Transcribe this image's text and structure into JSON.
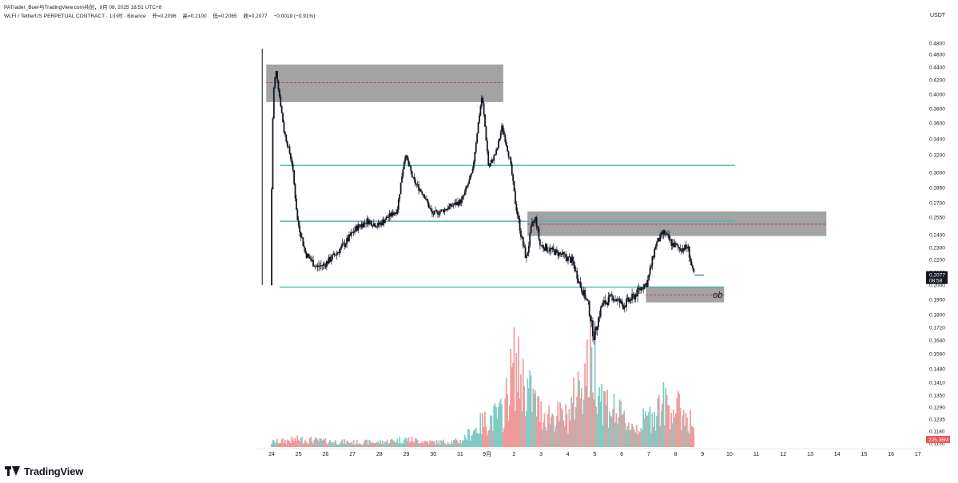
{
  "topbar": {
    "text": "PATrader_Buer与TradingView.com共创，9月 08, 2025 18:51 UTC+8"
  },
  "header": {
    "symbol": "WLFI / TetherUS PERPETUAL CONTRACT · 1小时 · Binance",
    "open": "开=0.2096",
    "high": "高=0.2100",
    "low": "低=0.2065",
    "close": "收=0.2077",
    "change": "−0.0019 (−0.91%)"
  },
  "currency": "USDT",
  "footer": {
    "brand": "TradingView"
  },
  "colors": {
    "candle": "#131722",
    "zone_fill": "#9e9e9e",
    "zone_mid_line": "#c2185b",
    "level_line": "#4db6ac",
    "price_label_bg": "#131722",
    "volume_up": "#80cbc4",
    "volume_down": "#ef9a9a",
    "volume_label_bg": "#ef5350"
  },
  "chart_data": {
    "type": "candlestick",
    "y_ticks": [
      "0.4800",
      "0.4600",
      "0.4400",
      "0.4200",
      "0.4000",
      "0.3800",
      "0.3600",
      "0.3400",
      "0.3200",
      "0.3000",
      "0.2850",
      "0.2700",
      "0.2550",
      "0.2400",
      "0.2300",
      "0.2200",
      "0.2100",
      "0.2000",
      "0.1900",
      "0.1800",
      "0.1720",
      "0.1640",
      "0.1560",
      "0.1480",
      "0.1410",
      "0.1350",
      "0.1290",
      "0.1235",
      "0.1180",
      "0.1130"
    ],
    "x_ticks": [
      "24",
      "25",
      "26",
      "27",
      "28",
      "29",
      "30",
      "31",
      "9月",
      "2",
      "3",
      "4",
      "5",
      "6",
      "7",
      "8",
      "9",
      "10",
      "11",
      "12",
      "13",
      "14",
      "15",
      "16",
      "17"
    ],
    "price_path": [
      [
        0,
        0.2
      ],
      [
        0.1,
        0.4
      ],
      [
        0.2,
        0.435
      ],
      [
        0.5,
        0.35
      ],
      [
        0.8,
        0.31
      ],
      [
        1.0,
        0.252
      ],
      [
        1.3,
        0.225
      ],
      [
        1.7,
        0.214
      ],
      [
        2.0,
        0.216
      ],
      [
        2.4,
        0.224
      ],
      [
        2.8,
        0.234
      ],
      [
        3.2,
        0.246
      ],
      [
        3.6,
        0.252
      ],
      [
        4.0,
        0.248
      ],
      [
        4.3,
        0.254
      ],
      [
        4.7,
        0.262
      ],
      [
        5.0,
        0.321
      ],
      [
        5.3,
        0.292
      ],
      [
        5.7,
        0.278
      ],
      [
        6.0,
        0.258
      ],
      [
        6.4,
        0.262
      ],
      [
        6.8,
        0.268
      ],
      [
        7.1,
        0.272
      ],
      [
        7.5,
        0.3
      ],
      [
        7.85,
        0.398
      ],
      [
        8.1,
        0.305
      ],
      [
        8.4,
        0.325
      ],
      [
        8.6,
        0.356
      ],
      [
        8.9,
        0.312
      ],
      [
        9.1,
        0.268
      ],
      [
        9.3,
        0.24
      ],
      [
        9.5,
        0.22
      ],
      [
        9.7,
        0.248
      ],
      [
        9.85,
        0.254
      ],
      [
        10.0,
        0.232
      ],
      [
        10.4,
        0.228
      ],
      [
        10.8,
        0.224
      ],
      [
        11.2,
        0.219
      ],
      [
        11.5,
        0.2
      ],
      [
        11.8,
        0.186
      ],
      [
        12.0,
        0.166
      ],
      [
        12.3,
        0.186
      ],
      [
        12.7,
        0.192
      ],
      [
        13.1,
        0.186
      ],
      [
        13.5,
        0.192
      ],
      [
        13.8,
        0.199
      ],
      [
        14.0,
        0.202
      ],
      [
        14.3,
        0.232
      ],
      [
        14.6,
        0.242
      ],
      [
        14.9,
        0.233
      ],
      [
        15.2,
        0.229
      ],
      [
        15.5,
        0.23
      ],
      [
        15.7,
        0.2077
      ]
    ],
    "zones": [
      {
        "x": [
          -0.2,
          8.6
        ],
        "y": [
          0.389,
          0.444
        ],
        "mid": 0.416
      },
      {
        "x": [
          9.5,
          20.6
        ],
        "y": [
          0.239,
          0.261
        ],
        "mid": 0.249
      },
      {
        "x": [
          13.9,
          16.8
        ],
        "y": [
          0.188,
          0.199
        ],
        "mid": 0.193,
        "label": "ob"
      }
    ],
    "levels": [
      {
        "y": 0.308,
        "x": [
          0.3,
          17.2
        ]
      },
      {
        "y": 0.2515,
        "x": [
          0.3,
          17.2
        ]
      },
      {
        "y": 0.1985,
        "x": [
          0.3,
          16.8
        ]
      }
    ],
    "last_price": {
      "value": "0.2077",
      "countdown": "08:58"
    },
    "volume_label": "225.36M",
    "volume_profile": [
      [
        0,
        0.05
      ],
      [
        1,
        0.08
      ],
      [
        2,
        0.06
      ],
      [
        3,
        0.05
      ],
      [
        4,
        0.05
      ],
      [
        5,
        0.08
      ],
      [
        6,
        0.05
      ],
      [
        7,
        0.06
      ],
      [
        7.85,
        0.25
      ],
      [
        8.6,
        0.35
      ],
      [
        9.0,
        0.85
      ],
      [
        9.3,
        0.7
      ],
      [
        10.0,
        0.35
      ],
      [
        11.0,
        0.3
      ],
      [
        11.5,
        0.7
      ],
      [
        12.0,
        0.9
      ],
      [
        12.3,
        0.5
      ],
      [
        13.0,
        0.3
      ],
      [
        13.5,
        0.2
      ],
      [
        14.0,
        0.3
      ],
      [
        14.5,
        0.45
      ],
      [
        15.0,
        0.4
      ],
      [
        15.5,
        0.3
      ],
      [
        15.7,
        0.2
      ]
    ]
  }
}
